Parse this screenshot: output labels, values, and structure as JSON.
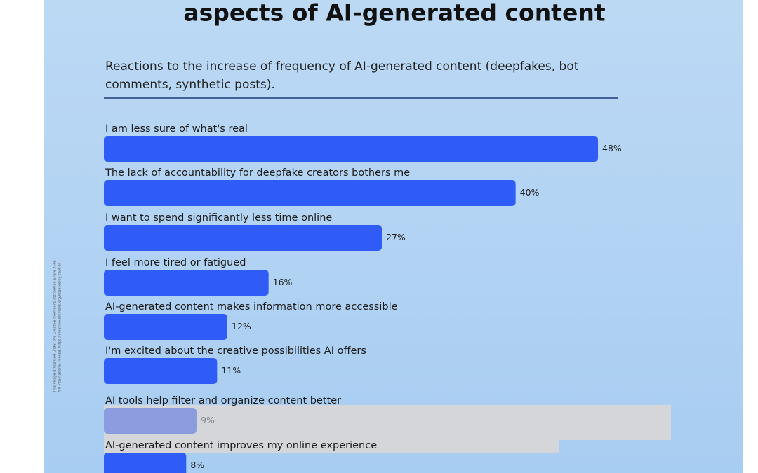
{
  "chart_data": {
    "type": "bar",
    "title": "aspects of AI-generated content",
    "subtitle": [
      "Reactions to the increase of frequency of AI-generated content (deepfakes, bot",
      "comments, synthetic posts)."
    ],
    "categories": [
      "I am less sure of what's real",
      "The lack of accountability for deepfake creators bothers me",
      "I want to spend significantly less time online",
      "I feel more tired or fatigued",
      "AI-generated content makes information more accessible",
      "I'm excited about the creative possibilities AI offers",
      "AI tools help filter and organize content better",
      "AI-generated content improves my online experience"
    ],
    "values": [
      48,
      40,
      27,
      16,
      12,
      11,
      9,
      8
    ],
    "value_labels": [
      "48%",
      "40%",
      "27%",
      "16%",
      "12%",
      "11%",
      "9%",
      "8%"
    ],
    "color": "#2f5cf6"
  },
  "license": [
    "This image is licensed under the Creative Commons Attribution-Share Alike",
    "4.0 International license. https://creativecommons.org/licenses/by-sa/4.0/"
  ]
}
